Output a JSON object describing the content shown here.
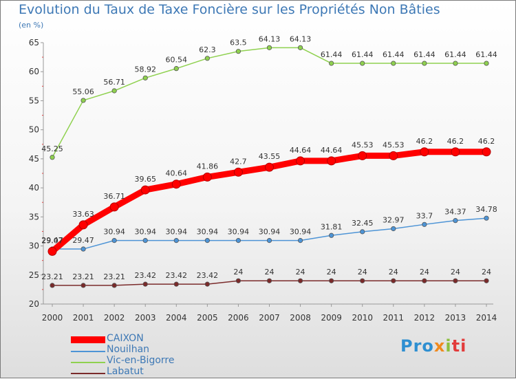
{
  "chart_data": {
    "type": "line",
    "title": "Evolution du Taux de Taxe Foncière sur les Propriétés Non Bâties",
    "subtitle": "(en %)",
    "x": [
      "2000",
      "2001",
      "2002",
      "2003",
      "2004",
      "2005",
      "2006",
      "2007",
      "2008",
      "2009",
      "2010",
      "2011",
      "2012",
      "2013",
      "2014"
    ],
    "ylim": [
      20,
      65
    ],
    "yticks": [
      20,
      25,
      30,
      35,
      40,
      45,
      50,
      55,
      60,
      65
    ],
    "grid": false,
    "legend_placement": "bottom-left",
    "series": [
      {
        "name": "Vic-en-Bigorre",
        "color": "#8fd14f",
        "values": [
          45.25,
          55.06,
          56.71,
          58.92,
          60.54,
          62.3,
          63.5,
          64.13,
          64.13,
          61.44,
          61.44,
          61.44,
          61.44,
          61.44,
          61.44
        ],
        "labels": [
          "45.25",
          "55.06",
          "56.71",
          "58.92",
          "60.54",
          "62.3",
          "63.5",
          "64.13",
          "64.13",
          "61.44",
          "61.44",
          "61.44",
          "61.44",
          "61.44",
          "61.44"
        ]
      },
      {
        "name": "CAIXON",
        "color": "#ff0000",
        "values": [
          29.07,
          33.63,
          36.71,
          39.65,
          40.64,
          41.86,
          42.7,
          43.55,
          44.64,
          44.64,
          45.53,
          45.53,
          46.2,
          46.2,
          46.2
        ],
        "labels": [
          "29.07",
          "33.63",
          "36.71",
          "39.65",
          "40.64",
          "41.86",
          "42.7",
          "43.55",
          "44.64",
          "44.64",
          "45.53",
          "45.53",
          "46.2",
          "46.2",
          "46.2"
        ]
      },
      {
        "name": "Nouilhan",
        "color": "#4d94d6",
        "values": [
          29.47,
          29.47,
          30.94,
          30.94,
          30.94,
          30.94,
          30.94,
          30.94,
          30.94,
          31.81,
          32.45,
          32.97,
          33.7,
          34.37,
          34.78
        ],
        "labels": [
          "29.47",
          "29.47",
          "30.94",
          "30.94",
          "30.94",
          "30.94",
          "30.94",
          "30.94",
          "30.94",
          "31.81",
          "32.45",
          "32.97",
          "33.7",
          "34.37",
          "34.78"
        ]
      },
      {
        "name": "Labatut",
        "color": "#7a2a2a",
        "values": [
          23.21,
          23.21,
          23.21,
          23.42,
          23.42,
          23.42,
          24,
          24,
          24,
          24,
          24,
          24,
          24,
          24,
          24
        ],
        "labels": [
          "23.21",
          "23.21",
          "23.21",
          "23.42",
          "23.42",
          "23.42",
          "24",
          "24",
          "24",
          "24",
          "24",
          "24",
          "24",
          "24",
          "24"
        ]
      }
    ]
  },
  "legend": {
    "items": [
      {
        "name": "CAIXON",
        "color": "#ff0000"
      },
      {
        "name": "Nouilhan",
        "color": "#4d94d6"
      },
      {
        "name": "Vic-en-Bigorre",
        "color": "#8fd14f"
      },
      {
        "name": "Labatut",
        "color": "#7a2a2a"
      }
    ]
  },
  "logo": {
    "p1": "Pro",
    "p2": "x",
    "p3": "i",
    "p4": "ti"
  }
}
